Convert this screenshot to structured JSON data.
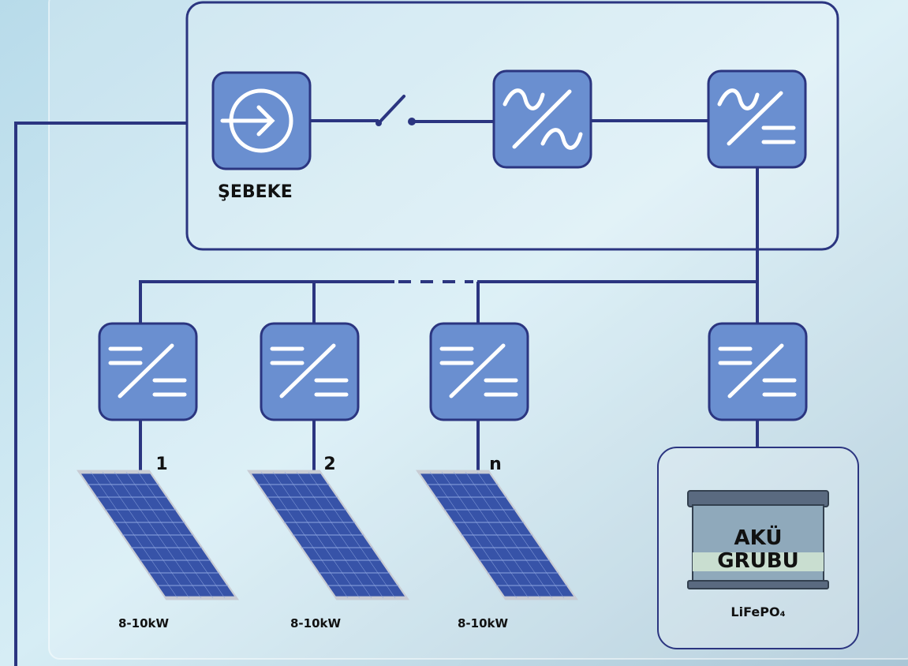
{
  "grid": {
    "label": "ŞEBEKE"
  },
  "panels": [
    {
      "label": "1",
      "power": "8-10kW"
    },
    {
      "label": "2",
      "power": "8-10kW"
    },
    {
      "label": "n",
      "power": "8-10kW"
    }
  ],
  "battery": {
    "line1": "AKÜ",
    "line2": "GRUBU",
    "chemistry": "LiFePO₄"
  }
}
